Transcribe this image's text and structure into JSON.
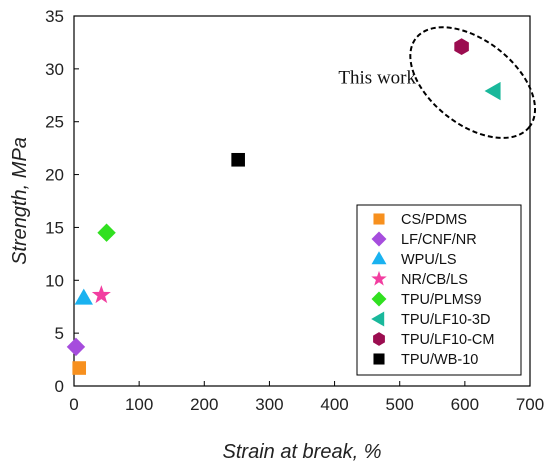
{
  "chart_data": {
    "type": "scatter",
    "title": "",
    "xlabel": "Strain at break, %",
    "ylabel": "Strength, MPa",
    "xlim": [
      0,
      700
    ],
    "ylim": [
      0,
      35
    ],
    "xticks": [
      0,
      100,
      200,
      300,
      400,
      500,
      600,
      700
    ],
    "yticks": [
      0,
      5,
      10,
      15,
      20,
      25,
      30,
      35
    ],
    "grid": false,
    "legend_position": "bottom-right",
    "series": [
      {
        "name": "CS/PDMS",
        "marker": "square",
        "color": "#f7901e",
        "points": [
          {
            "x": 8,
            "y": 1.7
          }
        ]
      },
      {
        "name": "LF/CNF/NR",
        "marker": "diamond",
        "color": "#a64ddd",
        "points": [
          {
            "x": 3,
            "y": 3.7
          }
        ]
      },
      {
        "name": "WPU/LS",
        "marker": "triangle-up",
        "color": "#1ab2f0",
        "points": [
          {
            "x": 15,
            "y": 8.3
          }
        ]
      },
      {
        "name": "NR/CB/LS",
        "marker": "star",
        "color": "#f23ea0",
        "points": [
          {
            "x": 42,
            "y": 8.6
          }
        ]
      },
      {
        "name": "TPU/PLMS9",
        "marker": "diamond",
        "color": "#31e020",
        "points": [
          {
            "x": 50,
            "y": 14.5
          }
        ]
      },
      {
        "name": "TPU/LF10-3D",
        "marker": "triangle-left",
        "color": "#19b89b",
        "points": [
          {
            "x": 645,
            "y": 27.9
          }
        ]
      },
      {
        "name": "TPU/LF10-CM",
        "marker": "hexagon",
        "color": "#9b0d50",
        "points": [
          {
            "x": 595,
            "y": 32.1
          }
        ]
      },
      {
        "name": "TPU/WB-10",
        "marker": "square",
        "color": "#000000",
        "points": [
          {
            "x": 252,
            "y": 21.4
          }
        ]
      }
    ],
    "annotations": [
      {
        "text": "This work",
        "x": 525,
        "y": 28.5,
        "shape": "dashed-ellipse"
      }
    ]
  }
}
